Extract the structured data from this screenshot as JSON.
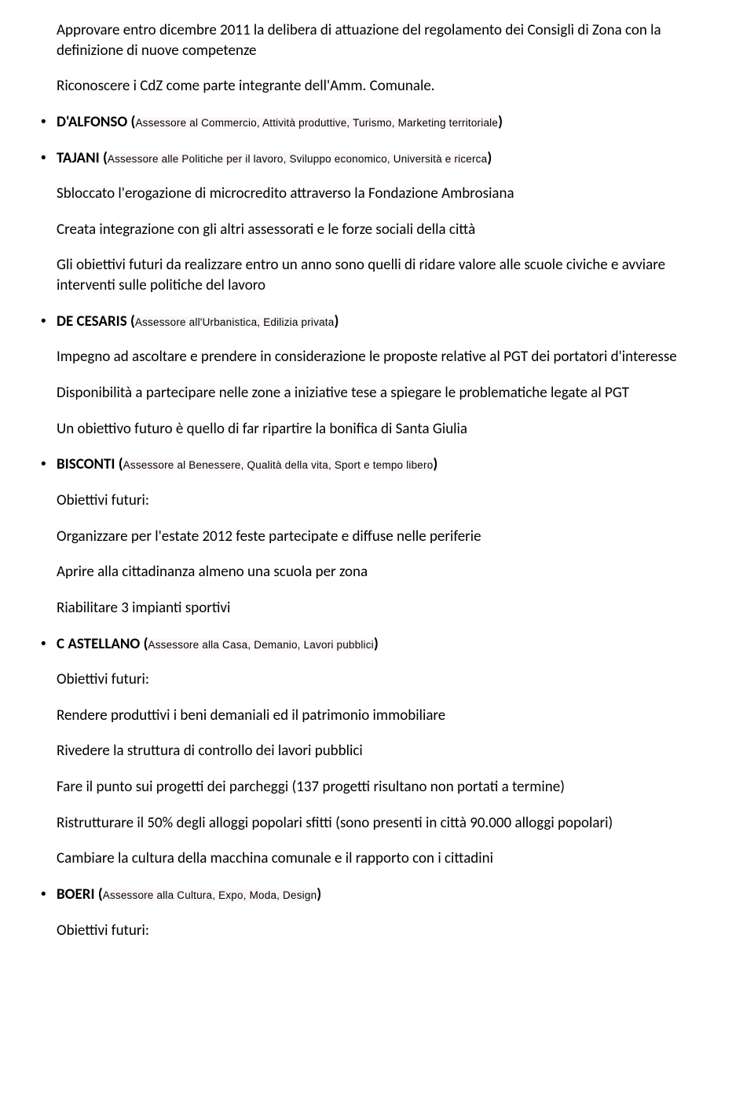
{
  "para1": "Approvare entro dicembre 2011 la delibera di attuazione del regolamento dei Consigli di Zona con  la definizione di nuove competenze",
  "para2": "Riconoscere i CdZ come parte integrante dell'Amm. Comunale.",
  "dalfonso_name": "D'ALFONSO (",
  "dalfonso_role": "Assessore al Commercio, Attività produttive, Turismo, Marketing territoriale",
  "close_paren": ")",
  "tajani_name": "TAJANI (",
  "tajani_role": "Assessore alle Politiche per il lavoro, Sviluppo economico, Università e ricerca",
  "tajani_p1": "Sbloccato l'erogazione di microcredito attraverso la Fondazione Ambrosiana",
  "tajani_p2": "Creata integrazione con gli altri assessorati e le forze sociali della città",
  "tajani_p3": "Gli obiettivi futuri da realizzare entro un anno sono quelli di  ridare valore alle scuole civiche e avviare interventi sulle politiche del lavoro",
  "decesaris_name": "DE  CESARIS (",
  "decesaris_role": "Assessore all'Urbanistica, Edilizia privata",
  "decesaris_p1": "Impegno ad ascoltare e prendere in considerazione le proposte relative al PGT dei portatori d'interesse",
  "decesaris_p2": "Disponibilità a partecipare nelle zone a iniziative tese a spiegare le problematiche legate al PGT",
  "decesaris_p3": "Un obiettivo futuro è quello di far ripartire la bonifica di Santa Giulia",
  "bisconti_name": "BISCONTI (",
  "bisconti_role": "Assessore al Benessere, Qualità della vita, Sport e tempo libero",
  "obiettivi": "Obiettivi futuri:",
  "bisconti_p1": "Organizzare per l'estate 2012 feste partecipate e diffuse nelle periferie",
  "bisconti_p2": "Aprire alla cittadinanza almeno una scuola per zona",
  "bisconti_p3": "Riabilitare 3 impianti sportivi",
  "castellano_name": "C ASTELLANO (",
  "castellano_role": "Assessore alla Casa, Demanio, Lavori pubblici",
  "castellano_p1": "Rendere produttivi i beni demaniali ed il patrimonio immobiliare",
  "castellano_p2": "Rivedere la struttura di controllo dei lavori pubblici",
  "castellano_p3": "Fare il punto sui progetti dei parcheggi (137 progetti risultano non portati a termine)",
  "castellano_p4": "Ristrutturare il 50% degli alloggi popolari sfitti (sono presenti in città 90.000 alloggi popolari)",
  "castellano_p5": "Cambiare la cultura della macchina comunale e il rapporto con i cittadini",
  "boeri_name": "BOERI (",
  "boeri_role": "Assessore alla Cultura, Expo, Moda, Design"
}
